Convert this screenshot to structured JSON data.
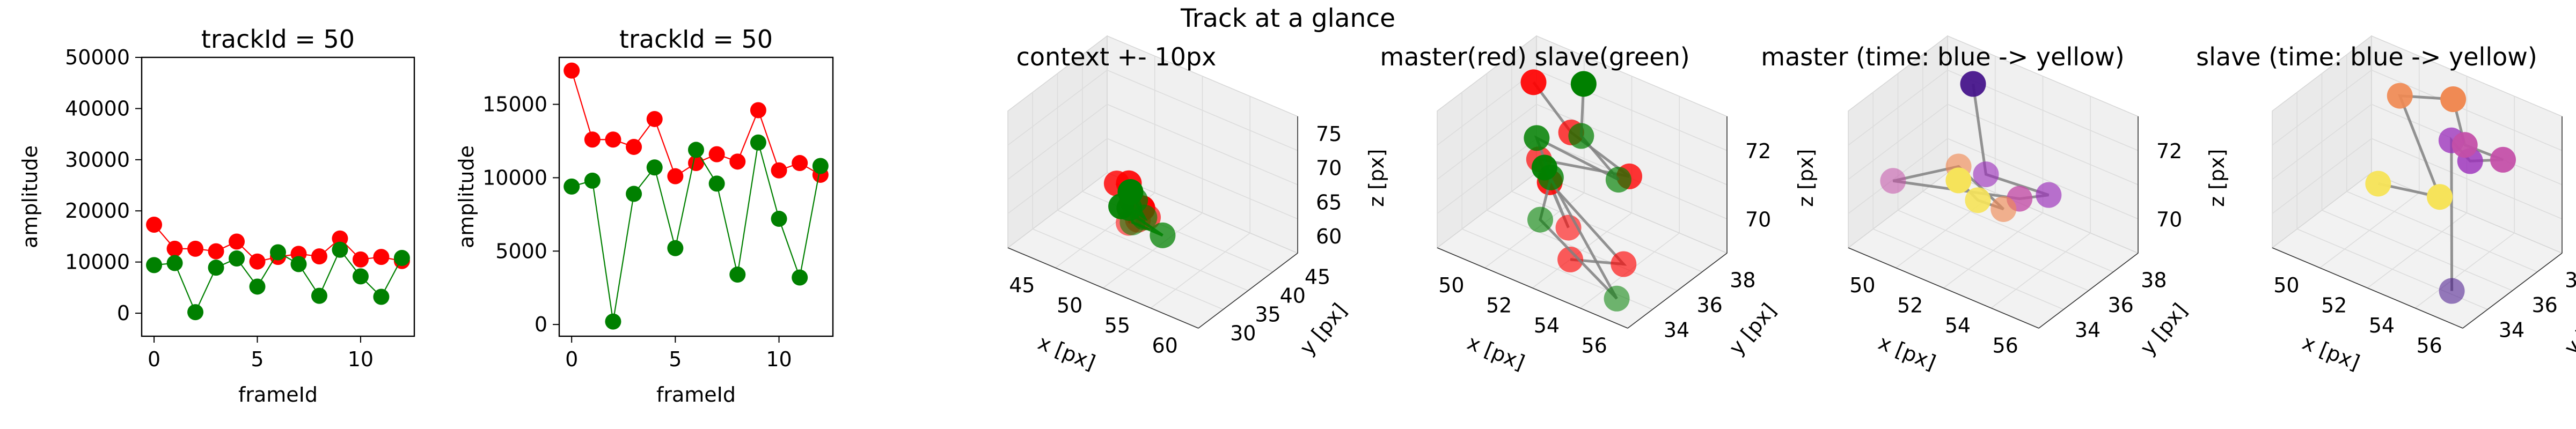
{
  "suptitle": "Track at a glance",
  "chart_data": [
    {
      "type": "scatter",
      "title": "trackId = 50",
      "xlabel": "frameId",
      "ylabel": "amplitude",
      "xlim": [
        -0.6,
        12.6
      ],
      "ylim": [
        -4500,
        50000
      ],
      "xticks": [
        0,
        5,
        10
      ],
      "yticks": [
        0,
        10000,
        20000,
        30000,
        40000,
        50000
      ],
      "grid": false,
      "series": [
        {
          "color": "#ff0000",
          "x": [
            0,
            1,
            2,
            3,
            4,
            5,
            6,
            7,
            8,
            9,
            10,
            11,
            12
          ],
          "values": [
            17300,
            12600,
            12600,
            12100,
            14000,
            10100,
            11000,
            11600,
            11100,
            14600,
            10500,
            11000,
            10200
          ]
        },
        {
          "color": "#008000",
          "x": [
            0,
            1,
            2,
            3,
            4,
            5,
            6,
            7,
            8,
            9,
            10,
            11,
            12
          ],
          "values": [
            9400,
            9800,
            200,
            8900,
            10700,
            5200,
            11900,
            9600,
            3400,
            12400,
            7200,
            3200,
            10800
          ]
        }
      ]
    },
    {
      "type": "scatter",
      "title": "trackId = 50",
      "xlabel": "frameId",
      "ylabel": "amplitude",
      "xlim": [
        -0.6,
        12.6
      ],
      "ylim": [
        -800,
        18200
      ],
      "xticks": [
        0,
        5,
        10
      ],
      "yticks": [
        0,
        5000,
        10000,
        15000
      ],
      "grid": false,
      "series": [
        {
          "color": "#ff0000",
          "x": [
            0,
            1,
            2,
            3,
            4,
            5,
            6,
            7,
            8,
            9,
            10,
            11,
            12
          ],
          "values": [
            17300,
            12600,
            12600,
            12100,
            14000,
            10100,
            11000,
            11600,
            11100,
            14600,
            10500,
            11000,
            10200
          ]
        },
        {
          "color": "#008000",
          "x": [
            0,
            1,
            2,
            3,
            4,
            5,
            6,
            7,
            8,
            9,
            10,
            11,
            12
          ],
          "values": [
            9400,
            9800,
            200,
            8900,
            10700,
            5200,
            11900,
            9600,
            3400,
            12400,
            7200,
            3200,
            10800
          ]
        }
      ]
    },
    {
      "type": "scatter3d",
      "title": "context +- 10px",
      "xlabel": "x [px]",
      "ylabel": "y [px]",
      "zlabel": "z [px]",
      "xticks": [
        "45",
        "50",
        "55",
        "60"
      ],
      "yticks": [
        "30",
        "35",
        "40",
        "45"
      ],
      "zticks": [
        "60",
        "65",
        "70",
        "75"
      ],
      "series": [
        {
          "color": "#ff0000",
          "x": [
            52.1,
            53.3,
            54.6,
            51.5,
            55.2,
            52.9,
            54.0
          ],
          "y": [
            37.2,
            35.8,
            34.6,
            36.4,
            35.1,
            37.9,
            34.2
          ],
          "z": [
            71.3,
            70.9,
            70.4,
            71.4,
            70.6,
            69.3,
            70.1
          ]
        },
        {
          "color": "#008000",
          "x": [
            51.8,
            53.7,
            55.0,
            52.4,
            54.3,
            56.1,
            51.2
          ],
          "y": [
            37.9,
            35.6,
            34.9,
            36.8,
            34.3,
            35.8,
            37.5
          ],
          "z": [
            70.2,
            71.2,
            70.6,
            69.6,
            70.2,
            69.2,
            69.0
          ]
        }
      ]
    },
    {
      "type": "scatter3d",
      "title": "master(red) slave(green)",
      "xlabel": "x [px]",
      "ylabel": "y [px]",
      "zlabel": "z [px]",
      "xticks": [
        "50",
        "52",
        "54",
        "56"
      ],
      "yticks": [
        "34",
        "36",
        "38"
      ],
      "zticks": [
        "70",
        "72"
      ],
      "series": [
        {
          "color": "#ff0000",
          "x": [
            51.1,
            53.4,
            55.0,
            52.6,
            54.1,
            51.9,
            55.6,
            53.9
          ],
          "y": [
            37.2,
            35.6,
            36.1,
            35.2,
            34.4,
            36.8,
            34.9,
            34.8
          ],
          "z": [
            72.2,
            72.3,
            71.3,
            71.3,
            70.1,
            69.5,
            69.3,
            68.8
          ]
        },
        {
          "color": "#008000",
          "x": [
            52.3,
            53.8,
            55.3,
            51.6,
            52.4,
            53.1,
            55.9,
            51.2
          ],
          "y": [
            37.9,
            35.5,
            35.1,
            36.6,
            36.1,
            34.5,
            34.1,
            37.6
          ],
          "z": [
            72.3,
            72.4,
            71.8,
            70.9,
            70.2,
            69.9,
            68.7,
            69.3
          ]
        }
      ],
      "connector_color": "#808080"
    },
    {
      "type": "scatter3d",
      "title": "master (time: blue -> yellow)",
      "xlabel": "x [px]",
      "ylabel": "y [px]",
      "zlabel": "z [px]",
      "xticks": [
        "50",
        "52",
        "54",
        "56"
      ],
      "yticks": [
        "34",
        "36",
        "38"
      ],
      "zticks": [
        "70",
        "72"
      ],
      "colormap": [
        "#45138a",
        "#9b2fbb",
        "#c34fa8",
        "#f08a54",
        "#f6e35a"
      ],
      "series": [
        {
          "x": [
            52.6,
            53.9,
            55.0,
            54.0,
            52.3,
            53.3,
            54.2,
            52.8,
            52.1
          ],
          "y": [
            37.2,
            35.2,
            35.5,
            36.3,
            34.7,
            35.3,
            35.3,
            37.0,
            37.6
          ],
          "z": [
            72.2,
            71.5,
            71.4,
            70.2,
            70.6,
            71.3,
            70.6,
            69.0,
            68.8
          ]
        }
      ],
      "connector_color": "#808080"
    },
    {
      "type": "scatter3d",
      "title": "slave (time: blue -> yellow)",
      "xlabel": "x [px]",
      "ylabel": "y [px]",
      "zlabel": "z [px]",
      "xticks": [
        "50",
        "52",
        "54",
        "56"
      ],
      "yticks": [
        "34",
        "36",
        "38"
      ],
      "zticks": [
        "70",
        "72"
      ],
      "colormap": [
        "#45138a",
        "#9b2fbb",
        "#c34fa8",
        "#f08a54",
        "#f6e35a"
      ],
      "series": [
        {
          "x": [
            55.2,
            54.1,
            54.4,
            54.8,
            53.6,
            53.0,
            51.8,
            52.6,
            50.9
          ],
          "y": [
            33.5,
            35.2,
            35.6,
            36.5,
            36.6,
            37.0,
            36.4,
            37.0,
            36.8
          ],
          "z": [
            69.0,
            71.8,
            71.2,
            71.0,
            70.9,
            71.7,
            71.6,
            69.0,
            68.8
          ]
        }
      ],
      "connector_color": "#808080"
    }
  ]
}
